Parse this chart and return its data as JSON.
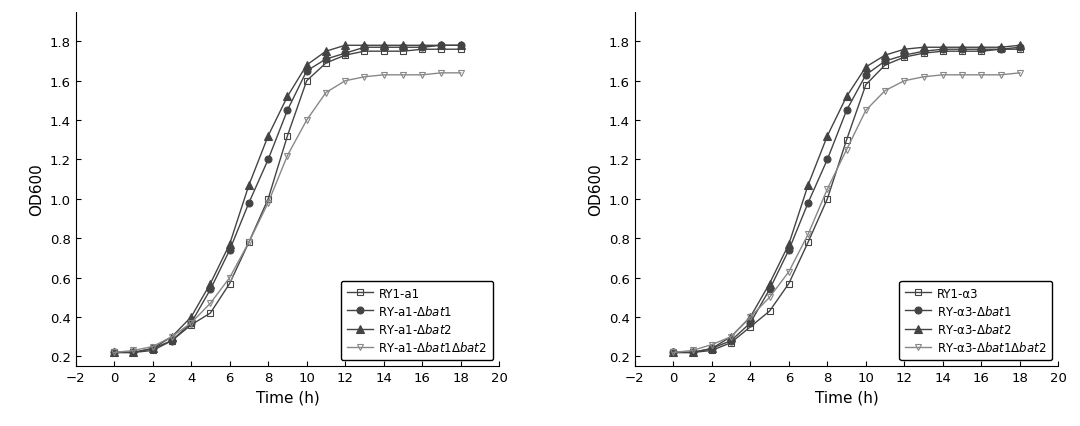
{
  "time": [
    0,
    1,
    2,
    3,
    4,
    5,
    6,
    7,
    8,
    9,
    10,
    11,
    12,
    13,
    14,
    15,
    16,
    17,
    18
  ],
  "left_series": [
    [
      0.22,
      0.22,
      0.23,
      0.28,
      0.36,
      0.42,
      0.57,
      0.78,
      1.0,
      1.32,
      1.6,
      1.69,
      1.73,
      1.75,
      1.75,
      1.75,
      1.76,
      1.76,
      1.76
    ],
    [
      0.22,
      0.22,
      0.24,
      0.28,
      0.37,
      0.54,
      0.74,
      0.98,
      1.2,
      1.45,
      1.65,
      1.71,
      1.74,
      1.77,
      1.77,
      1.77,
      1.77,
      1.78,
      1.78
    ],
    [
      0.22,
      0.22,
      0.24,
      0.3,
      0.4,
      0.57,
      0.77,
      1.07,
      1.32,
      1.52,
      1.68,
      1.75,
      1.78,
      1.78,
      1.78,
      1.78,
      1.78,
      1.78,
      1.78
    ],
    [
      0.22,
      0.23,
      0.25,
      0.3,
      0.37,
      0.47,
      0.6,
      0.78,
      0.98,
      1.22,
      1.4,
      1.54,
      1.6,
      1.62,
      1.63,
      1.63,
      1.63,
      1.64,
      1.64
    ]
  ],
  "right_series": [
    [
      0.22,
      0.22,
      0.23,
      0.27,
      0.35,
      0.43,
      0.57,
      0.78,
      1.0,
      1.3,
      1.58,
      1.68,
      1.72,
      1.74,
      1.75,
      1.75,
      1.75,
      1.76,
      1.76
    ],
    [
      0.22,
      0.22,
      0.24,
      0.28,
      0.37,
      0.54,
      0.74,
      0.98,
      1.2,
      1.45,
      1.63,
      1.7,
      1.73,
      1.75,
      1.76,
      1.76,
      1.76,
      1.76,
      1.77
    ],
    [
      0.22,
      0.22,
      0.24,
      0.3,
      0.4,
      0.57,
      0.77,
      1.07,
      1.32,
      1.52,
      1.67,
      1.73,
      1.76,
      1.77,
      1.77,
      1.77,
      1.77,
      1.77,
      1.78
    ],
    [
      0.22,
      0.23,
      0.26,
      0.3,
      0.4,
      0.5,
      0.63,
      0.82,
      1.05,
      1.25,
      1.45,
      1.55,
      1.6,
      1.62,
      1.63,
      1.63,
      1.63,
      1.63,
      1.64
    ]
  ],
  "left_legend": [
    "RY1-a1",
    "RY-a1-Δbat1",
    "RY-a1-Δbat2",
    "RY-a1-Δbat1Δbat2"
  ],
  "right_legend": [
    "RY1-α3",
    "RY-α3-Δbat1",
    "RY-α3-Δbat2",
    "RY-α3-Δbat1Δbat2"
  ],
  "xlabel": "Time (h)",
  "ylabel": "OD600",
  "xlim": [
    -2,
    20
  ],
  "ylim": [
    0.15,
    1.95
  ],
  "yticks": [
    0.2,
    0.4,
    0.6,
    0.8,
    1.0,
    1.2,
    1.4,
    1.6,
    1.8
  ],
  "xticks": [
    -2,
    0,
    2,
    4,
    6,
    8,
    10,
    12,
    14,
    16,
    18,
    20
  ],
  "line_color_main": "#444444",
  "line_color_double": "#888888",
  "markers": [
    "s",
    "o",
    "^",
    "v"
  ],
  "fillstyles": [
    "none",
    "full",
    "full",
    "none"
  ],
  "markersizes": [
    5,
    5,
    6,
    5
  ],
  "linewidths": [
    1.0,
    1.0,
    1.0,
    1.0
  ],
  "background": "#ffffff",
  "legend_fontsize": 8.5,
  "axis_fontsize": 11,
  "tick_fontsize": 9.5
}
